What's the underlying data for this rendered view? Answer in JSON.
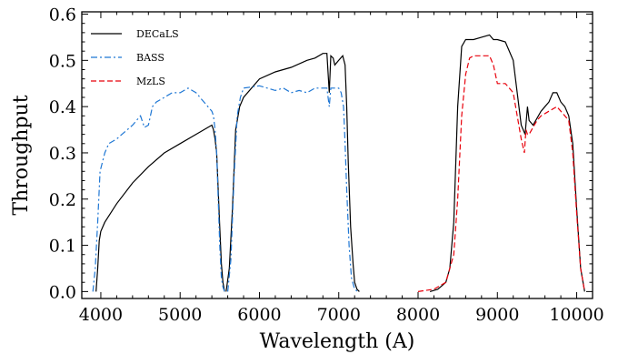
{
  "chart_data": {
    "type": "line",
    "title": "",
    "xlabel": "Wavelength (A)",
    "ylabel": "Throughput",
    "xlim": [
      3760,
      10200
    ],
    "ylim": [
      -0.015,
      0.605
    ],
    "xticks": [
      4000,
      5000,
      6000,
      7000,
      8000,
      9000,
      10000
    ],
    "yticks": [
      0.0,
      0.1,
      0.2,
      0.3,
      0.4,
      0.5,
      0.6
    ],
    "ytick_labels": [
      "0.0",
      "0.1",
      "0.2",
      "0.3",
      "0.4",
      "0.5",
      "0.6"
    ],
    "grid": false,
    "legend_position": "top-left",
    "series": [
      {
        "name": "DECaLS",
        "color": "#000000",
        "dash": "solid",
        "bands": [
          {
            "x": [
              3940,
              3960,
              3980,
              4000,
              4050,
              4200,
              4400,
              4600,
              4800,
              5000,
              5200,
              5350,
              5400,
              5420,
              5440,
              5460,
              5480,
              5500,
              5520,
              5540,
              5560
            ],
            "y": [
              0.0,
              0.05,
              0.11,
              0.13,
              0.15,
              0.19,
              0.235,
              0.27,
              0.3,
              0.32,
              0.34,
              0.355,
              0.36,
              0.35,
              0.33,
              0.3,
              0.22,
              0.14,
              0.06,
              0.02,
              0.0
            ]
          },
          {
            "x": [
              5580,
              5620,
              5660,
              5700,
              5750,
              5800,
              6000,
              6200,
              6400,
              6600,
              6700,
              6800,
              6850,
              6880,
              6900,
              6930,
              6950,
              7000,
              7050,
              7080,
              7100,
              7120,
              7150,
              7180,
              7200,
              7230,
              7260
            ],
            "y": [
              0.0,
              0.05,
              0.18,
              0.35,
              0.4,
              0.42,
              0.46,
              0.475,
              0.485,
              0.5,
              0.505,
              0.515,
              0.515,
              0.43,
              0.51,
              0.505,
              0.49,
              0.5,
              0.51,
              0.49,
              0.4,
              0.28,
              0.14,
              0.06,
              0.02,
              0.005,
              0.0
            ]
          },
          {
            "x": [
              8150,
              8250,
              8350,
              8400,
              8450,
              8500,
              8550,
              8600,
              8650,
              8700,
              8800,
              8900,
              8950,
              9000,
              9100,
              9150,
              9200,
              9250,
              9300,
              9350,
              9380,
              9400,
              9450,
              9500,
              9550,
              9600,
              9650,
              9700,
              9750,
              9800,
              9850,
              9900,
              9950,
              10000,
              10050,
              10100
            ],
            "y": [
              0.0,
              0.005,
              0.02,
              0.05,
              0.15,
              0.4,
              0.53,
              0.545,
              0.545,
              0.545,
              0.55,
              0.555,
              0.545,
              0.545,
              0.54,
              0.52,
              0.5,
              0.43,
              0.36,
              0.34,
              0.4,
              0.37,
              0.36,
              0.375,
              0.39,
              0.4,
              0.41,
              0.43,
              0.43,
              0.41,
              0.4,
              0.38,
              0.32,
              0.18,
              0.05,
              0.0
            ]
          }
        ]
      },
      {
        "name": "BASS",
        "color": "#1f77d4",
        "dash": "dashdot",
        "bands": [
          {
            "x": [
              3900,
              3930,
              3960,
              3990,
              4050,
              4100,
              4200,
              4300,
              4400,
              4450,
              4500,
              4550,
              4600,
              4650,
              4700,
              4800,
              4900,
              5000,
              5100,
              5200,
              5300,
              5350,
              5400,
              5420,
              5440,
              5460,
              5480,
              5500,
              5520,
              5540,
              5560
            ],
            "y": [
              0.0,
              0.05,
              0.15,
              0.26,
              0.3,
              0.32,
              0.33,
              0.345,
              0.36,
              0.37,
              0.38,
              0.355,
              0.36,
              0.4,
              0.41,
              0.42,
              0.43,
              0.43,
              0.44,
              0.43,
              0.41,
              0.4,
              0.39,
              0.38,
              0.35,
              0.3,
              0.2,
              0.1,
              0.03,
              0.01,
              0.0
            ]
          },
          {
            "x": [
              5600,
              5640,
              5680,
              5720,
              5760,
              5800,
              6000,
              6200,
              6300,
              6400,
              6500,
              6600,
              6700,
              6800,
              6850,
              6880,
              6900,
              6950,
              7000,
              7030,
              7060,
              7080,
              7100,
              7130,
              7160,
              7200,
              7240
            ],
            "y": [
              0.0,
              0.07,
              0.25,
              0.38,
              0.42,
              0.44,
              0.445,
              0.435,
              0.44,
              0.43,
              0.435,
              0.43,
              0.44,
              0.44,
              0.44,
              0.4,
              0.44,
              0.44,
              0.44,
              0.43,
              0.4,
              0.32,
              0.22,
              0.1,
              0.03,
              0.005,
              0.0
            ]
          }
        ]
      },
      {
        "name": "MzLS",
        "color": "#e8000b",
        "dash": "dashed",
        "bands": [
          {
            "x": [
              8000,
              8200,
              8350,
              8450,
              8500,
              8550,
              8600,
              8650,
              8700,
              8800,
              8900,
              8950,
              9000,
              9050,
              9100,
              9150,
              9200,
              9250,
              9300,
              9340,
              9360,
              9380,
              9400,
              9450,
              9500,
              9550,
              9600,
              9650,
              9700,
              9750,
              9800,
              9850,
              9900,
              9950,
              10000,
              10050,
              10100
            ],
            "y": [
              0.0,
              0.005,
              0.02,
              0.08,
              0.2,
              0.38,
              0.47,
              0.505,
              0.51,
              0.51,
              0.51,
              0.49,
              0.45,
              0.45,
              0.45,
              0.44,
              0.43,
              0.38,
              0.33,
              0.3,
              0.35,
              0.34,
              0.34,
              0.355,
              0.37,
              0.38,
              0.385,
              0.39,
              0.395,
              0.4,
              0.39,
              0.38,
              0.37,
              0.3,
              0.17,
              0.05,
              0.0
            ]
          }
        ]
      }
    ]
  }
}
